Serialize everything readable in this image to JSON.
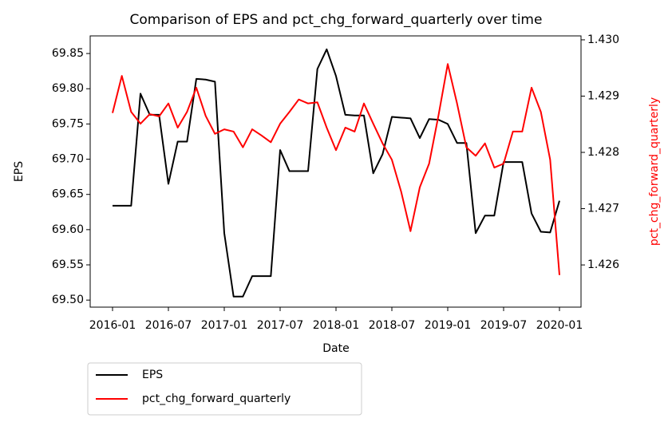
{
  "chart_data": {
    "type": "line",
    "title": "Comparison of EPS and pct_chg_forward_quarterly over time",
    "x_label": "Date",
    "y_label": "EPS",
    "y2_label": "pct_chg_forward_quarterly",
    "x": [
      "2016-01",
      "2016-02",
      "2016-03",
      "2016-04",
      "2016-05",
      "2016-06",
      "2016-07",
      "2016-08",
      "2016-09",
      "2016-10",
      "2016-11",
      "2016-12",
      "2017-01",
      "2017-02",
      "2017-03",
      "2017-04",
      "2017-05",
      "2017-06",
      "2017-07",
      "2017-08",
      "2017-09",
      "2017-10",
      "2017-11",
      "2017-12",
      "2018-01",
      "2018-02",
      "2018-03",
      "2018-04",
      "2018-05",
      "2018-06",
      "2018-07",
      "2018-08",
      "2018-09",
      "2018-10",
      "2018-11",
      "2018-12",
      "2019-01",
      "2019-02",
      "2019-03",
      "2019-04",
      "2019-05",
      "2019-06",
      "2019-07",
      "2019-08",
      "2019-09",
      "2019-10",
      "2019-11",
      "2019-12",
      "2020-01"
    ],
    "xticks": [
      "2016-01",
      "2016-07",
      "2017-01",
      "2017-07",
      "2018-01",
      "2018-07",
      "2019-01",
      "2019-07",
      "2020-01"
    ],
    "series": [
      {
        "name": "EPS",
        "color": "#000000",
        "axis": "y",
        "values": [
          69.634,
          69.634,
          69.634,
          69.793,
          69.763,
          69.763,
          69.665,
          69.725,
          69.725,
          69.814,
          69.813,
          69.81,
          69.595,
          69.505,
          69.505,
          69.534,
          69.534,
          69.534,
          69.713,
          69.683,
          69.683,
          69.683,
          69.828,
          69.856,
          69.818,
          69.763,
          69.762,
          69.762,
          69.68,
          69.707,
          69.76,
          69.759,
          69.758,
          69.73,
          69.757,
          69.756,
          69.75,
          69.723,
          69.723,
          69.595,
          69.62,
          69.62,
          69.696,
          69.696,
          69.696,
          69.623,
          69.597,
          69.596,
          69.641
        ]
      },
      {
        "name": "pct_chg_forward_quarterly",
        "color": "#ff0000",
        "axis": "y2",
        "values": [
          1.4287,
          1.42936,
          1.42872,
          1.42851,
          1.42868,
          1.42864,
          1.42887,
          1.42844,
          1.42872,
          1.42915,
          1.42865,
          1.42833,
          1.42841,
          1.42837,
          1.42809,
          1.42841,
          1.4283,
          1.42818,
          1.42851,
          1.42872,
          1.42894,
          1.42887,
          1.42889,
          1.42844,
          1.42804,
          1.42844,
          1.42837,
          1.42887,
          1.42851,
          1.42816,
          1.42787,
          1.4273,
          1.4266,
          1.42738,
          1.4278,
          1.42865,
          1.42957,
          1.42887,
          1.42809,
          1.42794,
          1.42816,
          1.42773,
          1.4278,
          1.42837,
          1.42837,
          1.42915,
          1.42872,
          1.42787,
          1.42582
        ]
      }
    ],
    "ylim": [
      69.49,
      69.875
    ],
    "yticks": [
      {
        "value": 69.5,
        "label": "69.50"
      },
      69.55,
      {
        "value": 69.6,
        "label": "69.60"
      },
      69.65,
      {
        "value": 69.7,
        "label": "69.70"
      },
      69.75,
      {
        "value": 69.8,
        "label": "69.80"
      },
      69.85
    ],
    "y2lim": [
      1.42525,
      1.43007
    ],
    "y2ticks": [
      1.426,
      1.427,
      1.428,
      1.429,
      {
        "value": 1.43,
        "label": "1.430"
      }
    ],
    "legend": "below-left"
  }
}
